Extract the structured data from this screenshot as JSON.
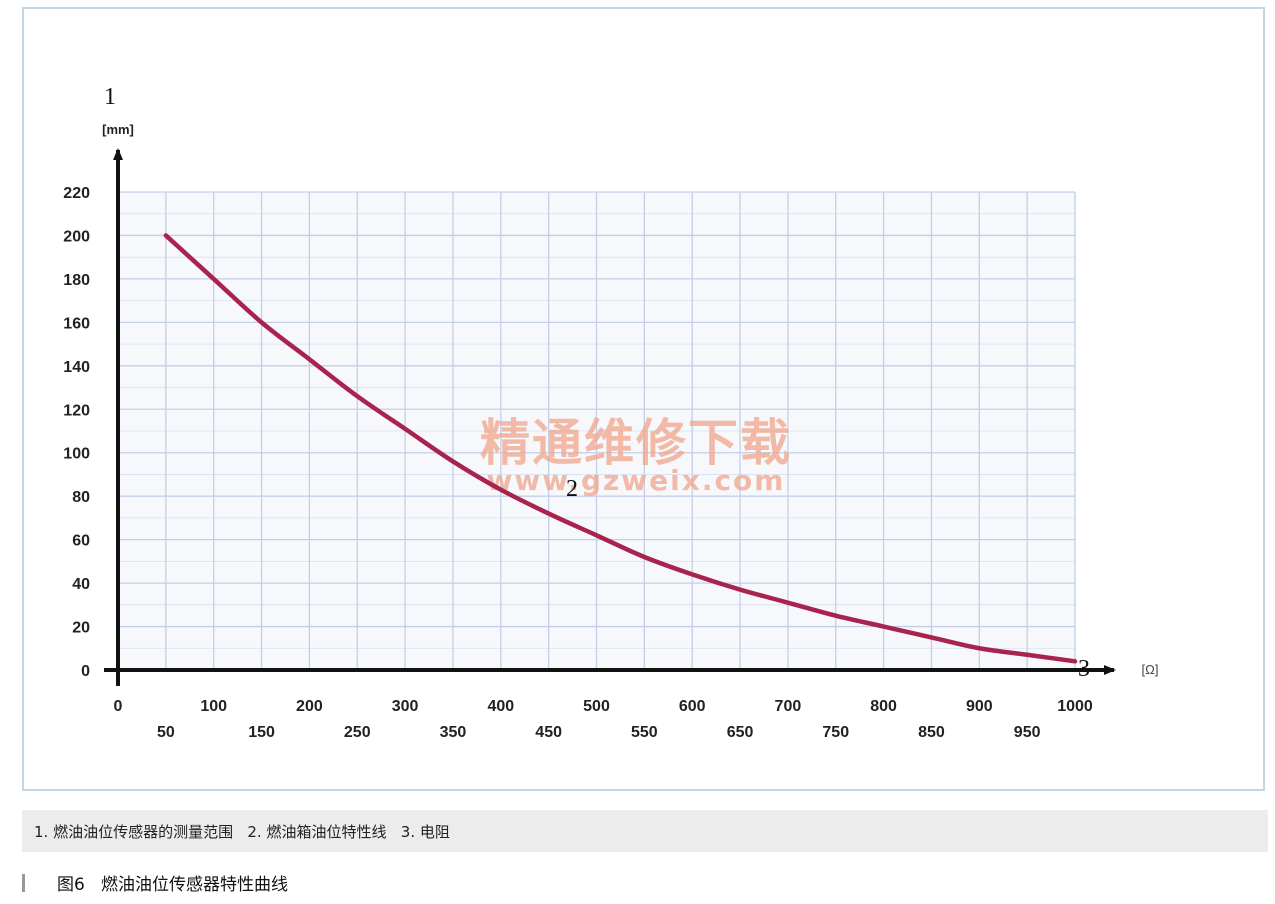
{
  "chart_data": {
    "type": "line",
    "title": "",
    "xlabel": "[Ω]",
    "ylabel": "[mm]",
    "xlim": [
      0,
      1000
    ],
    "ylim": [
      0,
      220
    ],
    "grid": true,
    "x_ticks_row1": [
      0,
      100,
      200,
      300,
      400,
      500,
      600,
      700,
      800,
      900,
      1000
    ],
    "x_ticks_row2": [
      50,
      150,
      250,
      350,
      450,
      550,
      650,
      750,
      850,
      950
    ],
    "y_ticks": [
      0,
      20,
      40,
      60,
      80,
      100,
      120,
      140,
      160,
      180,
      200,
      220
    ],
    "series": [
      {
        "color": "#a8234e",
        "x": [
          50,
          100,
          150,
          200,
          250,
          300,
          350,
          400,
          450,
          500,
          550,
          600,
          650,
          700,
          750,
          800,
          850,
          900,
          950,
          1000
        ],
        "y": [
          200,
          180,
          160,
          143,
          126,
          111,
          96,
          83,
          72,
          62,
          52,
          44,
          37,
          31,
          25,
          20,
          15,
          10,
          7,
          4
        ]
      }
    ],
    "markers": {
      "y_axis": "1",
      "curve": "2",
      "x_axis": "3"
    },
    "colors": {
      "grid": "#c3cfe8",
      "axis": "#111111",
      "plot_bg": "#f6f8fc"
    }
  },
  "watermark": {
    "text_cn": "精通维修下载",
    "text_url": "www.gzweix.com"
  },
  "caption": {
    "legend": "1. 燃油油位传感器的测量范围   2. 燃油箱油位特性线   3. 电阻",
    "figure": "图6   燃油油位传感器特性曲线"
  }
}
